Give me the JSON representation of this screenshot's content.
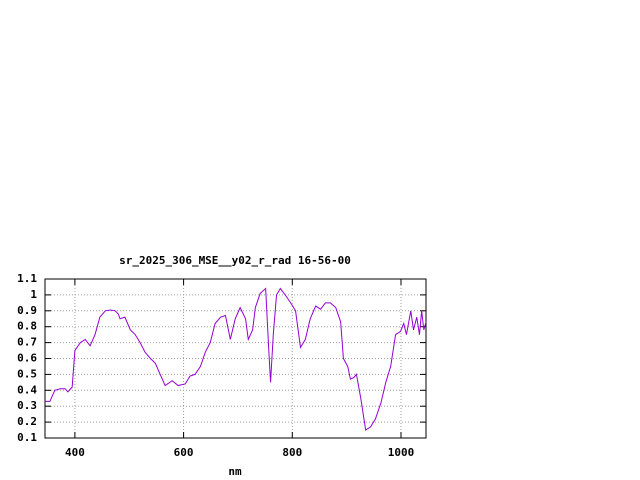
{
  "chart_data": {
    "type": "line",
    "title": "sr_2025_306_MSE__y02_r_rad 16-56-00",
    "xlabel": "nm",
    "xlim": [
      345,
      1046
    ],
    "xticks": [
      400,
      600,
      800,
      1000
    ],
    "ylim": [
      0.1,
      1.1
    ],
    "yticks": [
      0.1,
      0.2,
      0.3,
      0.4,
      0.5,
      0.6,
      0.7,
      0.8,
      0.9,
      1,
      1.1
    ],
    "grid": true,
    "series": [
      {
        "color": "#9400d3",
        "x": [
          345,
          354,
          363,
          373,
          382,
          387,
          395,
          400,
          410,
          419,
          428,
          437,
          446,
          456,
          465,
          474,
          480,
          483,
          492,
          502,
          511,
          520,
          529,
          539,
          548,
          557,
          566,
          579,
          590,
          603,
          612,
          621,
          631,
          640,
          649,
          658,
          668,
          677,
          686,
          695,
          704,
          714,
          719,
          727,
          732,
          741,
          751,
          756,
          760,
          765,
          771,
          778,
          787,
          797,
          806,
          815,
          824,
          833,
          843,
          852,
          861,
          870,
          880,
          889,
          894,
          902,
          907,
          913,
          918,
          926,
          935,
          944,
          953,
          963,
          972,
          981,
          990,
          999,
          1005,
          1010,
          1018,
          1023,
          1029,
          1034,
          1038,
          1042,
          1046
        ],
        "values": [
          0.33,
          0.33,
          0.4,
          0.41,
          0.41,
          0.39,
          0.42,
          0.65,
          0.7,
          0.72,
          0.68,
          0.75,
          0.86,
          0.9,
          0.905,
          0.9,
          0.88,
          0.85,
          0.86,
          0.78,
          0.75,
          0.7,
          0.64,
          0.6,
          0.57,
          0.5,
          0.43,
          0.46,
          0.43,
          0.44,
          0.49,
          0.5,
          0.55,
          0.64,
          0.7,
          0.82,
          0.86,
          0.87,
          0.72,
          0.85,
          0.92,
          0.85,
          0.72,
          0.78,
          0.92,
          1.01,
          1.04,
          0.7,
          0.45,
          0.75,
          1.0,
          1.04,
          1.0,
          0.95,
          0.9,
          0.67,
          0.72,
          0.85,
          0.93,
          0.91,
          0.95,
          0.95,
          0.92,
          0.83,
          0.6,
          0.55,
          0.47,
          0.48,
          0.5,
          0.35,
          0.15,
          0.17,
          0.22,
          0.32,
          0.45,
          0.55,
          0.75,
          0.77,
          0.82,
          0.75,
          0.9,
          0.78,
          0.86,
          0.75,
          0.9,
          0.78,
          0.83
        ]
      }
    ]
  }
}
